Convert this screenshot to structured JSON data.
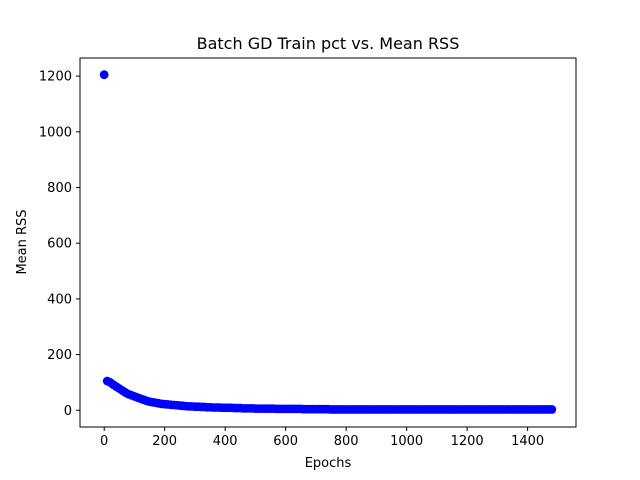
{
  "chart_data": {
    "type": "scatter",
    "title": "Batch GD Train pct vs. Mean RSS",
    "xlabel": "Epochs",
    "ylabel": "Mean RSS",
    "xlim": [
      -80,
      1560
    ],
    "ylim": [
      -60,
      1265
    ],
    "xticks": [
      0,
      200,
      400,
      600,
      800,
      1000,
      1200,
      1400
    ],
    "yticks": [
      0,
      200,
      400,
      600,
      800,
      1000,
      1200
    ],
    "grid": false,
    "marker_color": "#0000ff",
    "series": [
      {
        "points": [
          [
            0,
            1205
          ],
          [
            10,
            105
          ],
          [
            20,
            100
          ],
          [
            30,
            92
          ],
          [
            40,
            85
          ],
          [
            50,
            78
          ],
          [
            60,
            71
          ],
          [
            70,
            64
          ],
          [
            80,
            58
          ],
          [
            90,
            54
          ],
          [
            100,
            50
          ],
          [
            110,
            46
          ],
          [
            120,
            42
          ],
          [
            130,
            38
          ],
          [
            140,
            34
          ],
          [
            150,
            31
          ],
          [
            160,
            29
          ],
          [
            170,
            27
          ],
          [
            180,
            25
          ],
          [
            190,
            23
          ],
          [
            200,
            22
          ],
          [
            210,
            21
          ],
          [
            220,
            20
          ],
          [
            230,
            19
          ],
          [
            240,
            18
          ],
          [
            250,
            17
          ],
          [
            260,
            16
          ],
          [
            270,
            15
          ],
          [
            280,
            14
          ],
          [
            290,
            14
          ],
          [
            300,
            13
          ],
          [
            310,
            13
          ],
          [
            320,
            12
          ],
          [
            330,
            12
          ],
          [
            340,
            11
          ],
          [
            350,
            11
          ],
          [
            360,
            10
          ],
          [
            370,
            10
          ],
          [
            380,
            10
          ],
          [
            390,
            9
          ],
          [
            400,
            9
          ],
          [
            410,
            9
          ],
          [
            420,
            9
          ],
          [
            430,
            8
          ],
          [
            440,
            8
          ],
          [
            450,
            8
          ],
          [
            460,
            7
          ],
          [
            470,
            7
          ],
          [
            480,
            7
          ],
          [
            490,
            7
          ],
          [
            500,
            6
          ],
          [
            510,
            6
          ],
          [
            520,
            6
          ],
          [
            530,
            6
          ],
          [
            540,
            6
          ],
          [
            550,
            6
          ],
          [
            560,
            6
          ],
          [
            570,
            5
          ],
          [
            580,
            5
          ],
          [
            590,
            5
          ],
          [
            600,
            5
          ],
          [
            610,
            5
          ],
          [
            620,
            5
          ],
          [
            630,
            5
          ],
          [
            640,
            5
          ],
          [
            650,
            5
          ],
          [
            660,
            4
          ],
          [
            670,
            4
          ],
          [
            680,
            4
          ],
          [
            690,
            4
          ],
          [
            700,
            4
          ],
          [
            710,
            4
          ],
          [
            720,
            4
          ],
          [
            730,
            4
          ],
          [
            740,
            4
          ],
          [
            750,
            3
          ],
          [
            760,
            3
          ],
          [
            770,
            3
          ],
          [
            780,
            3
          ],
          [
            790,
            3
          ],
          [
            800,
            3
          ],
          [
            810,
            3
          ],
          [
            820,
            3
          ],
          [
            830,
            3
          ],
          [
            840,
            3
          ],
          [
            850,
            3
          ],
          [
            860,
            3
          ],
          [
            870,
            3
          ],
          [
            880,
            3
          ],
          [
            890,
            3
          ],
          [
            900,
            3
          ],
          [
            910,
            3
          ],
          [
            920,
            3
          ],
          [
            930,
            3
          ],
          [
            940,
            3
          ],
          [
            950,
            3
          ],
          [
            960,
            3
          ],
          [
            970,
            3
          ],
          [
            980,
            3
          ],
          [
            990,
            3
          ],
          [
            1000,
            3
          ],
          [
            1010,
            3
          ],
          [
            1020,
            3
          ],
          [
            1030,
            3
          ],
          [
            1040,
            3
          ],
          [
            1050,
            3
          ],
          [
            1060,
            3
          ],
          [
            1070,
            3
          ],
          [
            1080,
            3
          ],
          [
            1090,
            3
          ],
          [
            1100,
            3
          ],
          [
            1110,
            3
          ],
          [
            1120,
            3
          ],
          [
            1130,
            3
          ],
          [
            1140,
            3
          ],
          [
            1150,
            3
          ],
          [
            1160,
            3
          ],
          [
            1170,
            3
          ],
          [
            1180,
            3
          ],
          [
            1190,
            3
          ],
          [
            1200,
            3
          ],
          [
            1210,
            3
          ],
          [
            1220,
            3
          ],
          [
            1230,
            3
          ],
          [
            1240,
            3
          ],
          [
            1250,
            3
          ],
          [
            1260,
            3
          ],
          [
            1270,
            3
          ],
          [
            1280,
            3
          ],
          [
            1290,
            3
          ],
          [
            1300,
            3
          ],
          [
            1310,
            3
          ],
          [
            1320,
            3
          ],
          [
            1330,
            3
          ],
          [
            1340,
            3
          ],
          [
            1350,
            3
          ],
          [
            1360,
            3
          ],
          [
            1370,
            3
          ],
          [
            1380,
            3
          ],
          [
            1390,
            3
          ],
          [
            1400,
            3
          ],
          [
            1410,
            3
          ],
          [
            1420,
            3
          ],
          [
            1430,
            3
          ],
          [
            1440,
            3
          ],
          [
            1450,
            3
          ],
          [
            1460,
            3
          ],
          [
            1470,
            3
          ],
          [
            1480,
            3
          ]
        ]
      }
    ]
  }
}
